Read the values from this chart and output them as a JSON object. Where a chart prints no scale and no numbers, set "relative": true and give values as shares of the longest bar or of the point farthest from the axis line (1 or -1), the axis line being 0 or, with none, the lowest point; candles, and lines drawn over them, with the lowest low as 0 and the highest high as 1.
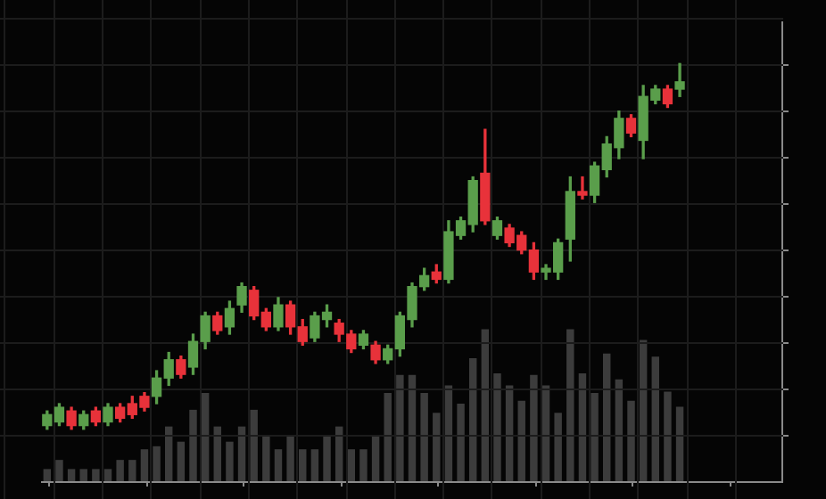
{
  "chart_data": [
    {
      "type": "candlestick",
      "relative": true,
      "grid": true,
      "categories": [
        null,
        null,
        null,
        null,
        null,
        null,
        null,
        null,
        null,
        null,
        null,
        null,
        null,
        null,
        null,
        null,
        null,
        null,
        null,
        null,
        null,
        null,
        null,
        null,
        null,
        null,
        null,
        null,
        null,
        null,
        null,
        null,
        null,
        null,
        null,
        null,
        null,
        null,
        null,
        null,
        null,
        null,
        null,
        null,
        null,
        null,
        null,
        null,
        null,
        null,
        null,
        null,
        null,
        null,
        null,
        null,
        null,
        null,
        null,
        null,
        null
      ],
      "ohlc": [
        [
          0.01,
          0.05,
          0,
          0.04
        ],
        [
          0.02,
          0.07,
          0.01,
          0.06
        ],
        [
          0.05,
          0.06,
          0,
          0.01
        ],
        [
          0.01,
          0.05,
          0,
          0.04
        ],
        [
          0.05,
          0.06,
          0.01,
          0.02
        ],
        [
          0.02,
          0.07,
          0.01,
          0.06
        ],
        [
          0.06,
          0.07,
          0.02,
          0.03
        ],
        [
          0.07,
          0.09,
          0.03,
          0.04
        ],
        [
          0.09,
          0.1,
          0.05,
          0.06
        ],
        [
          0.09,
          0.16,
          0.07,
          0.14
        ],
        [
          0.14,
          0.21,
          0.12,
          0.19
        ],
        [
          0.19,
          0.2,
          0.14,
          0.15
        ],
        [
          0.17,
          0.26,
          0.15,
          0.24
        ],
        [
          0.24,
          0.32,
          0.22,
          0.31
        ],
        [
          0.31,
          0.32,
          0.26,
          0.27
        ],
        [
          0.28,
          0.35,
          0.26,
          0.33
        ],
        [
          0.34,
          0.4,
          0.32,
          0.39
        ],
        [
          0.38,
          0.39,
          0.3,
          0.31
        ],
        [
          0.32,
          0.33,
          0.27,
          0.28
        ],
        [
          0.28,
          0.36,
          0.27,
          0.34
        ],
        [
          0.34,
          0.35,
          0.26,
          0.28
        ],
        [
          0.28,
          0.3,
          0.23,
          0.24
        ],
        [
          0.25,
          0.32,
          0.24,
          0.31
        ],
        [
          0.3,
          0.34,
          0.28,
          0.32
        ],
        [
          0.29,
          0.3,
          0.24,
          0.26
        ],
        [
          0.26,
          0.27,
          0.21,
          0.22
        ],
        [
          0.23,
          0.27,
          0.22,
          0.26
        ],
        [
          0.23,
          0.24,
          0.18,
          0.19
        ],
        [
          0.19,
          0.23,
          0.18,
          0.22
        ],
        [
          0.22,
          0.32,
          0.2,
          0.31
        ],
        [
          0.3,
          0.4,
          0.28,
          0.39
        ],
        [
          0.39,
          0.44,
          0.38,
          0.42
        ],
        [
          0.43,
          0.45,
          0.4,
          0.41
        ],
        [
          0.41,
          0.57,
          0.4,
          0.54
        ],
        [
          0.53,
          0.58,
          0.52,
          0.57
        ],
        [
          0.56,
          0.69,
          0.54,
          0.68
        ],
        [
          0.7,
          0.82,
          0.56,
          0.57
        ],
        [
          0.53,
          0.58,
          0.52,
          0.57
        ],
        [
          0.55,
          0.56,
          0.5,
          0.51
        ],
        [
          0.53,
          0.54,
          0.48,
          0.49
        ],
        [
          0.49,
          0.51,
          0.41,
          0.43
        ],
        [
          0.43,
          0.45,
          0.41,
          0.44
        ],
        [
          0.43,
          0.52,
          0.41,
          0.51
        ],
        [
          0.52,
          0.69,
          0.46,
          0.65
        ],
        [
          0.65,
          0.69,
          0.63,
          0.64
        ],
        [
          0.64,
          0.73,
          0.62,
          0.72
        ],
        [
          0.71,
          0.8,
          0.69,
          0.78
        ],
        [
          0.77,
          0.87,
          0.74,
          0.85
        ],
        [
          0.85,
          0.86,
          0.8,
          0.81
        ],
        [
          0.79,
          0.94,
          0.74,
          0.91
        ],
        [
          0.9,
          0.94,
          0.89,
          0.93
        ],
        [
          0.93,
          0.94,
          0.88,
          0.89
        ],
        [
          0.93,
          1,
          0.91,
          0.95
        ],
        null,
        null,
        null,
        null,
        null,
        null,
        null,
        null
      ],
      "colors": [
        "#5a9e4b",
        "#5a9e4b",
        "#e8323a",
        "#5a9e4b",
        "#e8323a",
        "#5a9e4b",
        "#e8323a",
        "#e8323a",
        "#e8323a",
        "#5a9e4b",
        "#5a9e4b",
        "#e8323a",
        "#5a9e4b",
        "#5a9e4b",
        "#e8323a",
        "#5a9e4b",
        "#5a9e4b",
        "#e8323a",
        "#e8323a",
        "#5a9e4b",
        "#e8323a",
        "#e8323a",
        "#5a9e4b",
        "#5a9e4b",
        "#e8323a",
        "#e8323a",
        "#5a9e4b",
        "#e8323a",
        "#5a9e4b",
        "#5a9e4b",
        "#5a9e4b",
        "#5a9e4b",
        "#e8323a",
        "#5a9e4b",
        "#5a9e4b",
        "#5a9e4b",
        "#e8323a",
        "#5a9e4b",
        "#e8323a",
        "#e8323a",
        "#e8323a",
        "#5a9e4b",
        "#5a9e4b",
        "#5a9e4b",
        "#e8323a",
        "#5a9e4b",
        "#5a9e4b",
        "#5a9e4b",
        "#e8323a",
        "#5a9e4b",
        "#5a9e4b",
        "#e8323a",
        "#5a9e4b",
        null,
        null,
        null,
        null,
        null,
        null,
        null,
        null
      ]
    },
    {
      "type": "bar",
      "relative": true,
      "color": "#3c3c3c",
      "categories": [
        null,
        null,
        null,
        null,
        null,
        null,
        null,
        null,
        null,
        null,
        null,
        null,
        null,
        null,
        null,
        null,
        null,
        null,
        null,
        null,
        null,
        null,
        null,
        null,
        null,
        null,
        null,
        null,
        null,
        null,
        null,
        null,
        null,
        null,
        null,
        null,
        null,
        null,
        null,
        null,
        null,
        null,
        null,
        null,
        null,
        null,
        null,
        null,
        null,
        null,
        null,
        null,
        null,
        null,
        null,
        null,
        null,
        null,
        null,
        null,
        null
      ],
      "values": [
        0.08,
        0.14,
        0.08,
        0.08,
        0.08,
        0.08,
        0.14,
        0.14,
        0.21,
        0.23,
        0.36,
        0.26,
        0.47,
        0.58,
        0.36,
        0.26,
        0.36,
        0.47,
        0.3,
        0.21,
        0.3,
        0.21,
        0.21,
        0.3,
        0.36,
        0.21,
        0.21,
        0.3,
        0.58,
        0.7,
        0.7,
        0.58,
        0.45,
        0.63,
        0.51,
        0.81,
        1,
        0.71,
        0.63,
        0.53,
        0.7,
        0.63,
        0.45,
        1,
        0.71,
        0.58,
        0.84,
        0.67,
        0.53,
        0.93,
        0.82,
        0.59,
        0.49,
        null,
        null,
        null,
        null,
        null,
        null,
        null,
        null
      ]
    }
  ]
}
